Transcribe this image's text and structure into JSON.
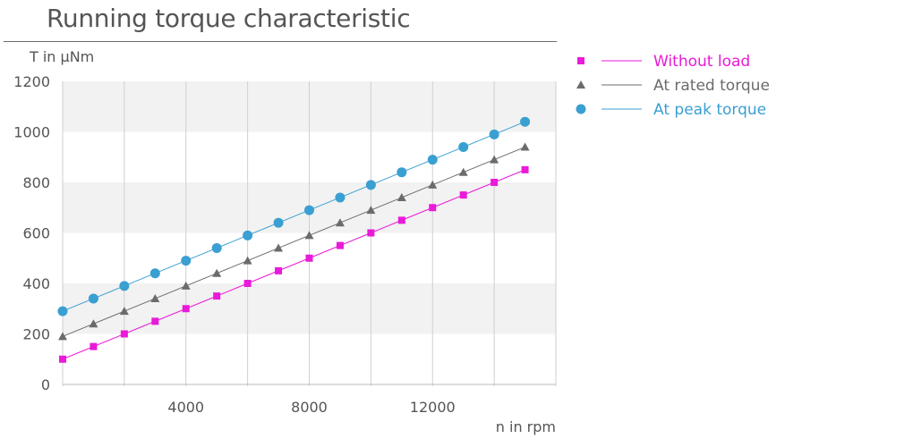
{
  "chart_data": {
    "type": "line",
    "title": "Running torque characteristic",
    "ylabel": "T in µNm",
    "xlabel": "n in rpm",
    "xlim": [
      0,
      16000
    ],
    "ylim": [
      0,
      1200
    ],
    "x_ticks": [
      4000,
      8000,
      12000
    ],
    "x_tick_labels": [
      "4000",
      "8000",
      "12000"
    ],
    "y_ticks": [
      0,
      200,
      400,
      600,
      800,
      1000,
      1200
    ],
    "y_tick_labels": [
      "0",
      "200",
      "400",
      "600",
      "800",
      "1000",
      "1200"
    ],
    "grid": "vertical lines every 2000 rpm, alternating horizontal bands",
    "legend_position": "right",
    "x": [
      0,
      1000,
      2000,
      3000,
      4000,
      5000,
      6000,
      7000,
      8000,
      9000,
      10000,
      11000,
      12000,
      13000,
      14000,
      15000
    ],
    "series": [
      {
        "name": "Without load",
        "marker": "square",
        "color": "#e91ad9",
        "values": [
          100,
          150,
          200,
          250,
          300,
          350,
          400,
          450,
          500,
          550,
          600,
          650,
          700,
          750,
          800,
          850
        ]
      },
      {
        "name": "At rated torque",
        "marker": "triangle",
        "color": "#6b6b6b",
        "values": [
          190,
          240,
          290,
          340,
          390,
          440,
          490,
          540,
          590,
          640,
          690,
          740,
          790,
          840,
          890,
          940
        ]
      },
      {
        "name": "At peak torque",
        "marker": "circle",
        "color": "#3a9fd1",
        "values": [
          290,
          340,
          390,
          440,
          490,
          540,
          590,
          640,
          690,
          740,
          790,
          840,
          890,
          940,
          990,
          1040
        ]
      }
    ]
  }
}
